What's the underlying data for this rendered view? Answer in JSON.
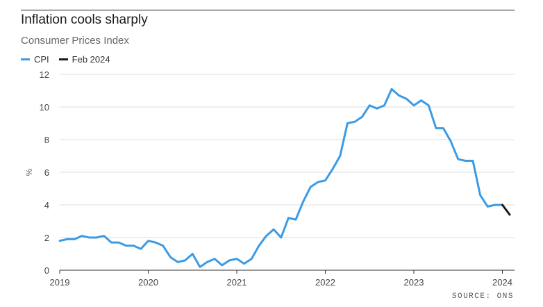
{
  "chart_data": {
    "type": "line",
    "title": "Inflation cools sharply",
    "subtitle": "Consumer Prices Index",
    "ylabel": "%",
    "xlabel": "",
    "ylim": [
      0,
      12
    ],
    "yticks": [
      0,
      2,
      4,
      6,
      8,
      10,
      12
    ],
    "xlim": [
      "2019-01",
      "2024-02"
    ],
    "xticks": [
      "2019",
      "2020",
      "2021",
      "2022",
      "2023",
      "2024"
    ],
    "grid": "horizontal",
    "legend_position": "top-left",
    "series": [
      {
        "name": "CPI",
        "color": "#3b9be6",
        "x": [
          "2019-01",
          "2019-02",
          "2019-03",
          "2019-04",
          "2019-05",
          "2019-06",
          "2019-07",
          "2019-08",
          "2019-09",
          "2019-10",
          "2019-11",
          "2019-12",
          "2020-01",
          "2020-02",
          "2020-03",
          "2020-04",
          "2020-05",
          "2020-06",
          "2020-07",
          "2020-08",
          "2020-09",
          "2020-10",
          "2020-11",
          "2020-12",
          "2021-01",
          "2021-02",
          "2021-03",
          "2021-04",
          "2021-05",
          "2021-06",
          "2021-07",
          "2021-08",
          "2021-09",
          "2021-10",
          "2021-11",
          "2021-12",
          "2022-01",
          "2022-02",
          "2022-03",
          "2022-04",
          "2022-05",
          "2022-06",
          "2022-07",
          "2022-08",
          "2022-09",
          "2022-10",
          "2022-11",
          "2022-12",
          "2023-01",
          "2023-02",
          "2023-03",
          "2023-04",
          "2023-05",
          "2023-06",
          "2023-07",
          "2023-08",
          "2023-09",
          "2023-10",
          "2023-11",
          "2023-12",
          "2024-01"
        ],
        "values": [
          1.8,
          1.9,
          1.9,
          2.1,
          2.0,
          2.0,
          2.1,
          1.7,
          1.7,
          1.5,
          1.5,
          1.3,
          1.8,
          1.7,
          1.5,
          0.8,
          0.5,
          0.6,
          1.0,
          0.2,
          0.5,
          0.7,
          0.3,
          0.6,
          0.7,
          0.4,
          0.7,
          1.5,
          2.1,
          2.5,
          2.0,
          3.2,
          3.1,
          4.2,
          5.1,
          5.4,
          5.5,
          6.2,
          7.0,
          9.0,
          9.1,
          9.4,
          10.1,
          9.9,
          10.1,
          11.1,
          10.7,
          10.5,
          10.1,
          10.4,
          10.1,
          8.7,
          8.7,
          7.9,
          6.8,
          6.7,
          6.7,
          4.6,
          3.9,
          4.0,
          4.0
        ]
      },
      {
        "name": "Feb 2024",
        "color": "#1a1a1a",
        "x": [
          "2024-01",
          "2024-02"
        ],
        "values": [
          4.0,
          3.4
        ]
      }
    ]
  },
  "legend": {
    "items": [
      {
        "label": "CPI",
        "color": "#3b9be6"
      },
      {
        "label": "Feb 2024",
        "color": "#1a1a1a"
      }
    ]
  },
  "source": "SOURCE: ONS"
}
